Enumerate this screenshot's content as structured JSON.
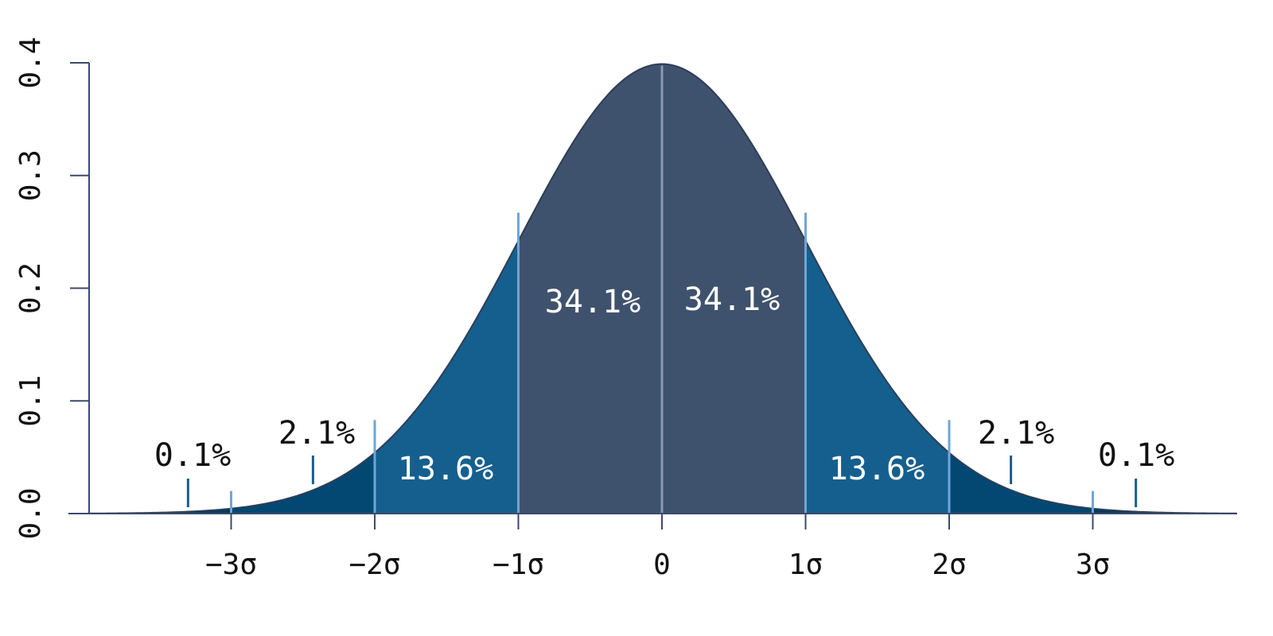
{
  "chart_data": {
    "type": "area",
    "distribution": "standard normal",
    "xlim": [
      -4,
      4
    ],
    "ylim": [
      0,
      0.4
    ],
    "x_ticks": [
      -3,
      -2,
      -1,
      0,
      1,
      2,
      3
    ],
    "x_tick_labels": [
      "−3σ",
      "−2σ",
      "−1σ",
      "0",
      "1σ",
      "2σ",
      "3σ"
    ],
    "y_ticks": [
      0.0,
      0.1,
      0.2,
      0.3,
      0.4
    ],
    "y_tick_labels": [
      "0.0",
      "0.1",
      "0.2",
      "0.3",
      "0.4"
    ],
    "regions": [
      {
        "from": -1,
        "to": 0,
        "percent": "34.1%",
        "color": "#3f526d"
      },
      {
        "from": 0,
        "to": 1,
        "percent": "34.1%",
        "color": "#3f526d"
      },
      {
        "from": -2,
        "to": -1,
        "percent": "13.6%",
        "color": "#155f8e"
      },
      {
        "from": 1,
        "to": 2,
        "percent": "13.6%",
        "color": "#155f8e"
      },
      {
        "from": -3,
        "to": -2,
        "percent": "2.1%",
        "color": "#024873"
      },
      {
        "from": 2,
        "to": 3,
        "percent": "2.1%",
        "color": "#024873"
      },
      {
        "from": -4,
        "to": -3,
        "percent": "0.1%",
        "color": "#003a5e"
      },
      {
        "from": 3,
        "to": 4,
        "percent": "0.1%",
        "color": "#003a5e"
      }
    ],
    "colors": {
      "sigma_divider": "#6fa6d6",
      "center_line": "#8a9bb0",
      "axis": "#3b4a6b",
      "curve_outline": "#2e3d55",
      "pointer": "#1a5c8c",
      "inside_label": "#ffffff",
      "outside_label": "#111111"
    }
  }
}
